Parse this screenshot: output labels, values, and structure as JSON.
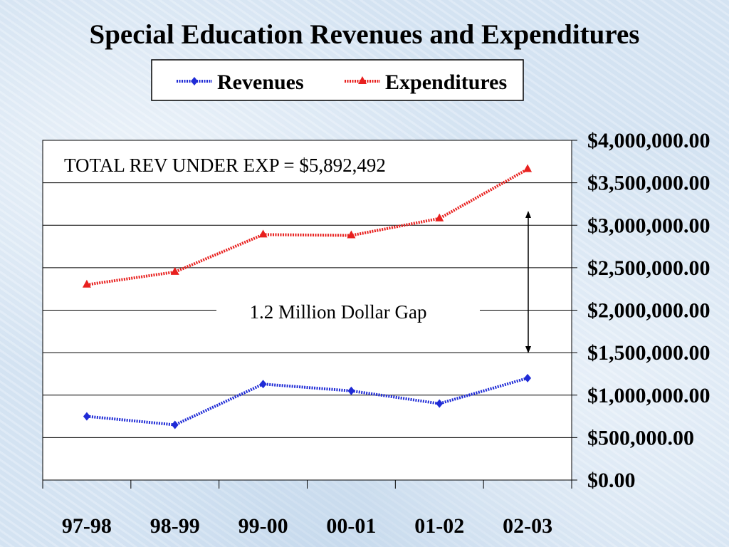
{
  "chart_data": {
    "type": "line",
    "title": "Special Education Revenues and Expenditures",
    "categories": [
      "97-98",
      "98-99",
      "99-00",
      "00-01",
      "01-02",
      "02-03"
    ],
    "series": [
      {
        "name": "Revenues",
        "color": "#1f2bd6",
        "marker": "diamond",
        "values": [
          750000,
          650000,
          1130000,
          1050000,
          900000,
          1200000
        ]
      },
      {
        "name": "Expenditures",
        "color": "#e8201e",
        "marker": "triangle",
        "values": [
          2300000,
          2450000,
          2890000,
          2880000,
          3080000,
          3660000
        ]
      }
    ],
    "ylim": [
      0,
      4000000
    ],
    "ytick_labels": [
      "$0.00",
      "$500,000.00",
      "$1,000,000.00",
      "$1,500,000.00",
      "$2,000,000.00",
      "$2,500,000.00",
      "$3,000,000.00",
      "$3,500,000.00",
      "$4,000,000.00"
    ],
    "y_axis_side": "right",
    "grid": true,
    "legend_position": "top-center",
    "annotations": {
      "total": "TOTAL REV UNDER EXP = $5,892,492",
      "gap": "1.2 Million Dollar Gap"
    }
  }
}
